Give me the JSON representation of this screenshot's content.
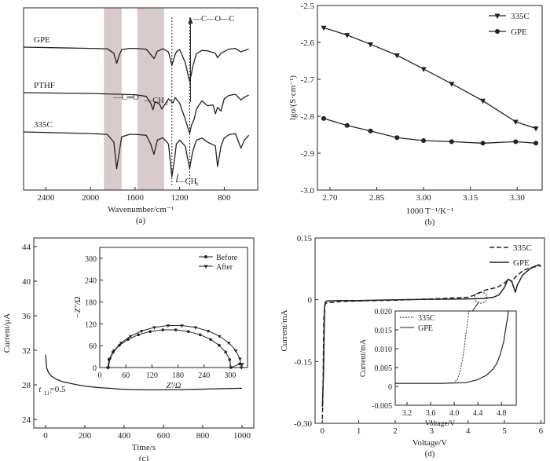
{
  "chart_data": [
    {
      "id": "a",
      "type": "line",
      "panel_label": "(a)",
      "xlabel": "Wavenumber/cm⁻¹",
      "xlim": [
        2600,
        500
      ],
      "xticks": [
        2400,
        2000,
        1600,
        1200,
        800
      ],
      "shaded_bands": [
        [
          1880,
          1720
        ],
        [
          1580,
          1340
        ]
      ],
      "dotted_lines": [
        1270,
        1110
      ],
      "series": [
        {
          "name": "GPE",
          "x": [
            2600,
            2300,
            2000,
            1850,
            1790,
            1765,
            1745,
            1720,
            1650,
            1600,
            1500,
            1460,
            1430,
            1400,
            1350,
            1300,
            1270,
            1245,
            1230,
            1200,
            1150,
            1110,
            1095,
            1080,
            1050,
            1000,
            950,
            880,
            860,
            830,
            760,
            700,
            650,
            620,
            580
          ],
          "y": [
            0,
            -0.15,
            -0.3,
            -0.4,
            -1.5,
            -4,
            -2.2,
            -0.6,
            -0.3,
            -0.3,
            -0.5,
            -1.8,
            -2.8,
            -1.0,
            -0.4,
            -1.2,
            -4.5,
            -2.2,
            -1.2,
            -0.6,
            -3.8,
            -8.5,
            -6.5,
            -4.5,
            -1.6,
            -0.8,
            -0.9,
            -1.5,
            -2.6,
            -1.5,
            -0.5,
            -0.3,
            -1.2,
            -0.8,
            -0.5
          ]
        },
        {
          "name": "PTHF",
          "x": [
            2600,
            2300,
            2000,
            1850,
            1700,
            1600,
            1500,
            1460,
            1440,
            1420,
            1380,
            1360,
            1300,
            1260,
            1240,
            1200,
            1150,
            1110,
            1095,
            1070,
            1050,
            1000,
            950,
            900,
            880,
            860,
            830,
            800,
            760,
            700,
            650,
            620,
            580
          ],
          "y": [
            0,
            -0.1,
            -0.2,
            -0.3,
            -0.4,
            -0.5,
            -0.9,
            -2.6,
            -4.2,
            -2.2,
            -2.8,
            -4.0,
            -1.5,
            -2.5,
            -1.2,
            -2.6,
            -6.5,
            -10,
            -8.0,
            -6.5,
            -4.0,
            -2.0,
            -3.2,
            -3.0,
            -5.2,
            -3.6,
            -4.5,
            -1.5,
            -0.7,
            -0.4,
            -1.8,
            -1.1,
            -0.6
          ]
        },
        {
          "name": "335C",
          "x": [
            2600,
            2300,
            2000,
            1850,
            1790,
            1765,
            1745,
            1720,
            1650,
            1600,
            1500,
            1460,
            1430,
            1400,
            1350,
            1300,
            1270,
            1245,
            1230,
            1200,
            1150,
            1110,
            1095,
            1080,
            1050,
            1000,
            950,
            880,
            860,
            830,
            800,
            760,
            700,
            650,
            620,
            580
          ],
          "y": [
            0,
            -0.2,
            -0.4,
            -0.6,
            -2.5,
            -9,
            -5.5,
            -1.2,
            -0.6,
            -0.6,
            -0.8,
            -3.0,
            -5.5,
            -2.0,
            -1.4,
            -3.0,
            -11,
            -6.5,
            -3.0,
            -2.0,
            -3.5,
            -9,
            -6.5,
            -4.5,
            -2.0,
            -1.5,
            -2.5,
            -3.4,
            -8.5,
            -3.5,
            -1.5,
            -0.7,
            -0.4,
            -4.0,
            -2.0,
            -0.8
          ]
        }
      ],
      "annotations": [
        "—C—O—C",
        "—C═O",
        "—CH",
        "—CH"
      ],
      "annotation_subscripts": [
        "2",
        "3"
      ]
    },
    {
      "id": "b",
      "type": "line",
      "panel_label": "(b)",
      "xlabel": "1000 T⁻¹/K⁻¹",
      "ylabel": "lgσ/(S·cm⁻¹)",
      "xlim": [
        2.66,
        3.38
      ],
      "ylim": [
        -3.0,
        -2.5
      ],
      "xticks": [
        "2.70",
        "2.85",
        "3.00",
        "3.15",
        "3.30"
      ],
      "yticks": [
        "-2.5",
        "-2.6",
        "-2.7",
        "-2.8",
        "-2.9",
        "-3.0"
      ],
      "legend": "top-right",
      "series": [
        {
          "name": "335C",
          "marker": "triangle-down",
          "x": [
            2.68,
            2.755,
            2.83,
            2.915,
            3.0,
            3.09,
            3.19,
            3.295,
            3.36
          ],
          "y": [
            -2.56,
            -2.58,
            -2.605,
            -2.635,
            -2.672,
            -2.712,
            -2.758,
            -2.815,
            -2.833
          ]
        },
        {
          "name": "GPE",
          "marker": "circle",
          "x": [
            2.68,
            2.755,
            2.83,
            2.915,
            3.0,
            3.09,
            3.19,
            3.295,
            3.36
          ],
          "y": [
            -2.806,
            -2.825,
            -2.84,
            -2.858,
            -2.866,
            -2.869,
            -2.873,
            -2.869,
            -2.873
          ]
        }
      ]
    },
    {
      "id": "c",
      "type": "line",
      "panel_label": "(c)",
      "xlabel": "Time/s",
      "ylabel": "Current/μA",
      "xlim": [
        -60,
        1060
      ],
      "ylim": [
        23,
        45
      ],
      "xticks": [
        "0",
        "200",
        "400",
        "600",
        "800",
        "1000"
      ],
      "yticks": [
        "24",
        "28",
        "32",
        "36",
        "40",
        "44"
      ],
      "annotation_main": "t",
      "annotation_sub": "Li⁺",
      "annotation_rest": "=0.5",
      "series": [
        {
          "name": "current",
          "x": [
            0,
            5,
            15,
            30,
            50,
            80,
            120,
            160,
            200,
            260,
            320,
            380,
            440,
            500,
            600,
            700,
            800,
            900,
            1000
          ],
          "y": [
            31.5,
            30.0,
            29.4,
            29.0,
            28.7,
            28.4,
            28.2,
            28.0,
            27.85,
            27.7,
            27.6,
            27.5,
            27.45,
            27.42,
            27.42,
            27.45,
            27.5,
            27.55,
            27.6
          ]
        }
      ],
      "inset": {
        "xlabel": "Z′/Ω",
        "ylabel": "−Z″/Ω",
        "xlim": [
          0,
          340
        ],
        "ylim": [
          0,
          330
        ],
        "xticks": [
          "0",
          "60",
          "120",
          "180",
          "240",
          "300"
        ],
        "yticks": [
          "0",
          "60",
          "120",
          "180",
          "240",
          "300"
        ],
        "legend": "top-right",
        "series": [
          {
            "name": "Before",
            "marker": "circle",
            "center": 160,
            "radius": 142,
            "height": 104,
            "tail_end": [
              322,
              10
            ]
          },
          {
            "name": "After",
            "marker": "triangle-down",
            "center": 173,
            "radius": 153,
            "height": 116,
            "tail_end": [
              328,
              10
            ]
          }
        ]
      }
    },
    {
      "id": "d",
      "type": "line",
      "panel_label": "(d)",
      "xlabel": "Voltage/V",
      "ylabel": "Current/mA",
      "xlim": [
        -0.2,
        6.1
      ],
      "ylim": [
        -0.3,
        0.15
      ],
      "xticks": [
        "0",
        "1",
        "2",
        "3",
        "4",
        "5",
        "6"
      ],
      "yticks": [
        "0.15",
        "0",
        "-0.15",
        "-0.30"
      ],
      "legend": "top-right",
      "series": [
        {
          "name": "335C",
          "style": "dashed",
          "x": [
            0.0,
            0.02,
            0.04,
            0.06,
            0.1,
            0.5,
            1.0,
            2.0,
            3.0,
            4.0,
            4.2,
            4.5,
            4.8,
            5.0,
            5.1,
            5.2,
            5.3,
            5.5,
            5.7,
            5.85,
            5.95,
            6.0
          ],
          "y": [
            -0.29,
            -0.2,
            -0.05,
            -0.015,
            -0.008,
            -0.004,
            -0.003,
            -0.001,
            0.002,
            0.006,
            0.012,
            0.024,
            0.03,
            0.04,
            0.05,
            0.044,
            0.055,
            0.07,
            0.078,
            0.08,
            0.083,
            0.082
          ]
        },
        {
          "name": "GPE",
          "style": "solid",
          "x": [
            0.0,
            0.03,
            0.06,
            0.08,
            0.12,
            0.5,
            1.0,
            2.0,
            3.0,
            4.0,
            4.4,
            4.7,
            4.85,
            5.0,
            5.1,
            5.2,
            5.3,
            5.35,
            5.5,
            5.7,
            5.85,
            5.95,
            6.0
          ],
          "y": [
            -0.26,
            -0.18,
            -0.02,
            -0.006,
            -0.003,
            -0.002,
            -0.002,
            0.0,
            0.001,
            0.002,
            0.003,
            0.006,
            0.012,
            0.03,
            0.05,
            0.045,
            0.018,
            0.035,
            0.06,
            0.075,
            0.082,
            0.085,
            0.08
          ]
        }
      ],
      "inset": {
        "xlabel": "Voltage/V",
        "ylabel": "Current/mA",
        "xlim": [
          3.0,
          5.05
        ],
        "ylim": [
          -0.005,
          0.02
        ],
        "xticks": [
          "3.2",
          "3.6",
          "4.0",
          "4.4",
          "4.8"
        ],
        "yticks": [
          "0.020",
          "0.015",
          "0.010",
          "0.005",
          "0",
          "-0.005"
        ],
        "legend": "top-left",
        "series": [
          {
            "name": "335C",
            "style": "dashed",
            "x": [
              3.0,
              3.4,
              3.8,
              4.0,
              4.05,
              4.1,
              4.15,
              4.2,
              4.25
            ],
            "y": [
              0.0008,
              0.0008,
              0.0008,
              0.001,
              0.0018,
              0.004,
              0.008,
              0.014,
              0.02
            ]
          },
          {
            "name": "GPE",
            "style": "solid",
            "x": [
              3.0,
              3.4,
              3.8,
              4.2,
              4.4,
              4.55,
              4.65,
              4.72,
              4.78,
              4.84,
              4.88,
              4.92
            ],
            "y": [
              0.0008,
              0.0008,
              0.0008,
              0.001,
              0.0018,
              0.003,
              0.0045,
              0.006,
              0.0085,
              0.012,
              0.016,
              0.02
            ]
          }
        ]
      }
    }
  ]
}
